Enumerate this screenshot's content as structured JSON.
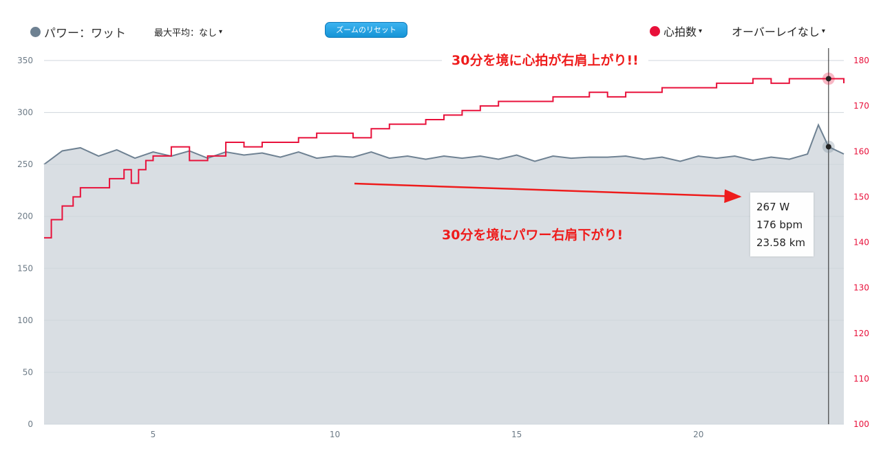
{
  "toolbar": {
    "power_legend": "パワー：ワット",
    "max_avg": "最大平均：なし",
    "zoom_reset": "ズームのリセット",
    "hr_legend": "心拍数",
    "overlay": "オーバーレイなし",
    "caret": "▾"
  },
  "tooltip": {
    "power": "267 W",
    "hr": "176 bpm",
    "distance": "23.58 km"
  },
  "annotations": {
    "top": "30分を境に心拍が右肩上がり!!",
    "bottom": "30分を境にパワー右肩下がり!"
  },
  "colors": {
    "power": "#6e8192",
    "power_fill": "#d9dee3",
    "hr": "#e8103a",
    "annot": "#ee1c1c"
  },
  "chart_data": {
    "type": "area",
    "x_ticks": [
      5,
      10,
      15,
      20
    ],
    "xlim": [
      2,
      24
    ],
    "y_left": {
      "ticks": [
        0,
        50,
        100,
        150,
        200,
        250,
        300,
        350
      ],
      "lim": [
        0,
        350
      ]
    },
    "y_right": {
      "ticks": [
        100,
        110,
        120,
        130,
        140,
        150,
        160,
        170,
        180
      ],
      "lim": [
        100,
        180
      ]
    },
    "cursor_x": 23.58,
    "series": [
      {
        "name": "パワー：ワット",
        "axis": "left",
        "x": [
          2.0,
          2.5,
          3.0,
          3.5,
          4.0,
          4.5,
          5.0,
          5.5,
          6.0,
          6.5,
          7.0,
          7.5,
          8.0,
          8.5,
          9.0,
          9.5,
          10.0,
          10.5,
          11.0,
          11.5,
          12.0,
          12.5,
          13.0,
          13.5,
          14.0,
          14.5,
          15.0,
          15.5,
          16.0,
          16.5,
          17.0,
          17.5,
          18.0,
          18.5,
          19.0,
          19.5,
          20.0,
          20.5,
          21.0,
          21.5,
          22.0,
          22.5,
          23.0,
          23.3,
          23.58,
          24.0
        ],
        "values": [
          250,
          263,
          266,
          258,
          264,
          256,
          262,
          258,
          263,
          256,
          262,
          259,
          261,
          257,
          262,
          256,
          258,
          257,
          262,
          256,
          258,
          255,
          258,
          256,
          258,
          255,
          259,
          253,
          258,
          256,
          257,
          257,
          258,
          255,
          257,
          253,
          258,
          256,
          258,
          254,
          257,
          255,
          260,
          288,
          267,
          260
        ]
      },
      {
        "name": "心拍数",
        "axis": "right",
        "x": [
          2.0,
          2.2,
          2.5,
          2.8,
          3.0,
          3.5,
          3.8,
          4.0,
          4.2,
          4.4,
          4.6,
          4.8,
          5.0,
          5.5,
          6.0,
          6.5,
          7.0,
          7.5,
          8.0,
          8.5,
          9.0,
          9.5,
          10.0,
          10.5,
          11.0,
          11.5,
          12.0,
          12.5,
          13.0,
          13.5,
          14.0,
          14.5,
          15.0,
          15.5,
          16.0,
          16.5,
          17.0,
          17.5,
          18.0,
          18.5,
          19.0,
          19.5,
          20.0,
          20.5,
          21.0,
          21.5,
          22.0,
          22.5,
          23.0,
          23.3,
          23.58,
          24.0
        ],
        "values": [
          141,
          145,
          148,
          150,
          152,
          152,
          154,
          154,
          156,
          153,
          156,
          158,
          159,
          161,
          158,
          159,
          162,
          161,
          162,
          162,
          163,
          164,
          164,
          163,
          165,
          166,
          166,
          167,
          168,
          169,
          170,
          171,
          171,
          171,
          172,
          172,
          173,
          172,
          173,
          173,
          174,
          174,
          174,
          175,
          175,
          176,
          175,
          176,
          176,
          176,
          176,
          175
        ]
      }
    ]
  }
}
